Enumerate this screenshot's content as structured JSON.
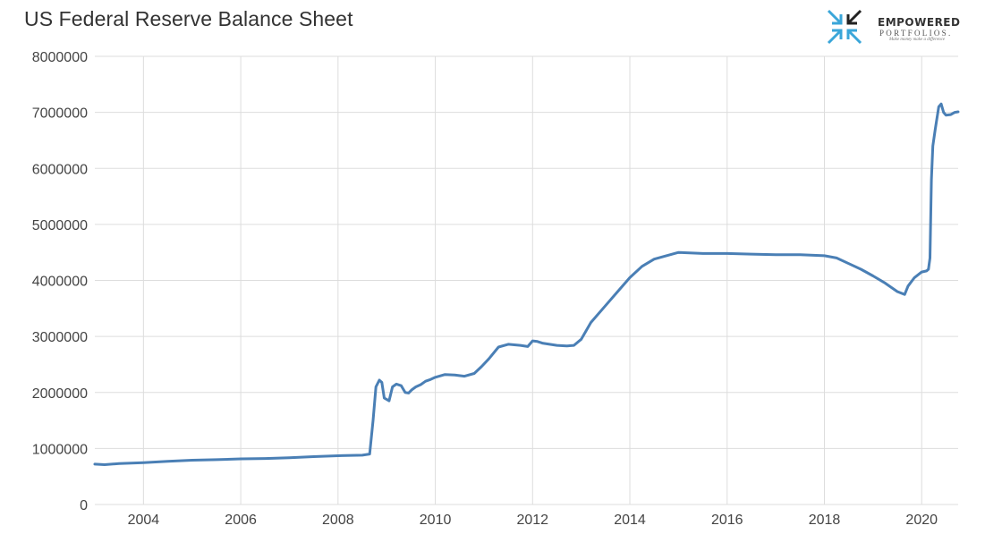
{
  "title": "US Federal Reserve Balance Sheet",
  "logo": {
    "name": "EMPOWERED",
    "sub": "PORTFOLIOS.",
    "tagline": "Make money make a difference",
    "colors": {
      "arrow_dark": "#222222",
      "arrow_blue": "#3aa6d9"
    }
  },
  "colors": {
    "line": "#4a7fb5",
    "grid": "#dddddd",
    "axis_text": "#444444"
  },
  "chart_data": {
    "type": "line",
    "title": "US Federal Reserve Balance Sheet",
    "xlabel": "",
    "ylabel": "",
    "xlim": [
      2003.0,
      2020.75
    ],
    "ylim": [
      0,
      8000000
    ],
    "grid": true,
    "legend": "none",
    "x_ticks": [
      "2004",
      "2006",
      "2008",
      "2010",
      "2012",
      "2014",
      "2016",
      "2018",
      "2020"
    ],
    "y_ticks": [
      "8000000",
      "7000000",
      "6000000",
      "5000000",
      "4000000",
      "3000000",
      "2000000",
      "1000000",
      "0"
    ],
    "series": [
      {
        "x": [
          2003.0,
          2003.2,
          2003.5,
          2004.0,
          2004.5,
          2005.0,
          2005.5,
          2006.0,
          2006.5,
          2007.0,
          2007.5,
          2008.0,
          2008.5,
          2008.65,
          2008.72,
          2008.78,
          2008.85,
          2008.9,
          2008.95,
          2009.05,
          2009.12,
          2009.2,
          2009.3,
          2009.38,
          2009.45,
          2009.52,
          2009.6,
          2009.7,
          2009.8,
          2009.9,
          2010.0,
          2010.2,
          2010.4,
          2010.6,
          2010.8,
          2010.95,
          2011.1,
          2011.3,
          2011.5,
          2011.75,
          2011.9,
          2012.0,
          2012.1,
          2012.2,
          2012.35,
          2012.5,
          2012.7,
          2012.85,
          2013.0,
          2013.2,
          2013.5,
          2013.75,
          2014.0,
          2014.25,
          2014.5,
          2014.75,
          2015.0,
          2015.5,
          2016.0,
          2016.5,
          2017.0,
          2017.5,
          2018.0,
          2018.25,
          2018.5,
          2018.75,
          2019.0,
          2019.25,
          2019.5,
          2019.65,
          2019.72,
          2019.85,
          2020.0,
          2020.1,
          2020.14,
          2020.17,
          2020.2,
          2020.23,
          2020.28,
          2020.35,
          2020.4,
          2020.45,
          2020.5,
          2020.6,
          2020.68,
          2020.75
        ],
        "y": [
          720000,
          710000,
          730000,
          745000,
          770000,
          790000,
          800000,
          815000,
          820000,
          835000,
          855000,
          870000,
          880000,
          900000,
          1500000,
          2100000,
          2220000,
          2180000,
          1900000,
          1850000,
          2100000,
          2150000,
          2120000,
          2000000,
          1990000,
          2050000,
          2100000,
          2140000,
          2200000,
          2230000,
          2270000,
          2320000,
          2310000,
          2290000,
          2340000,
          2460000,
          2600000,
          2810000,
          2860000,
          2840000,
          2820000,
          2920000,
          2910000,
          2880000,
          2860000,
          2840000,
          2830000,
          2840000,
          2950000,
          3250000,
          3550000,
          3800000,
          4050000,
          4250000,
          4380000,
          4440000,
          4500000,
          4480000,
          4480000,
          4470000,
          4460000,
          4460000,
          4440000,
          4400000,
          4300000,
          4200000,
          4080000,
          3950000,
          3800000,
          3750000,
          3900000,
          4050000,
          4150000,
          4170000,
          4200000,
          4400000,
          5800000,
          6400000,
          6700000,
          7100000,
          7150000,
          7000000,
          6950000,
          6960000,
          7000000,
          7010000
        ]
      }
    ]
  }
}
